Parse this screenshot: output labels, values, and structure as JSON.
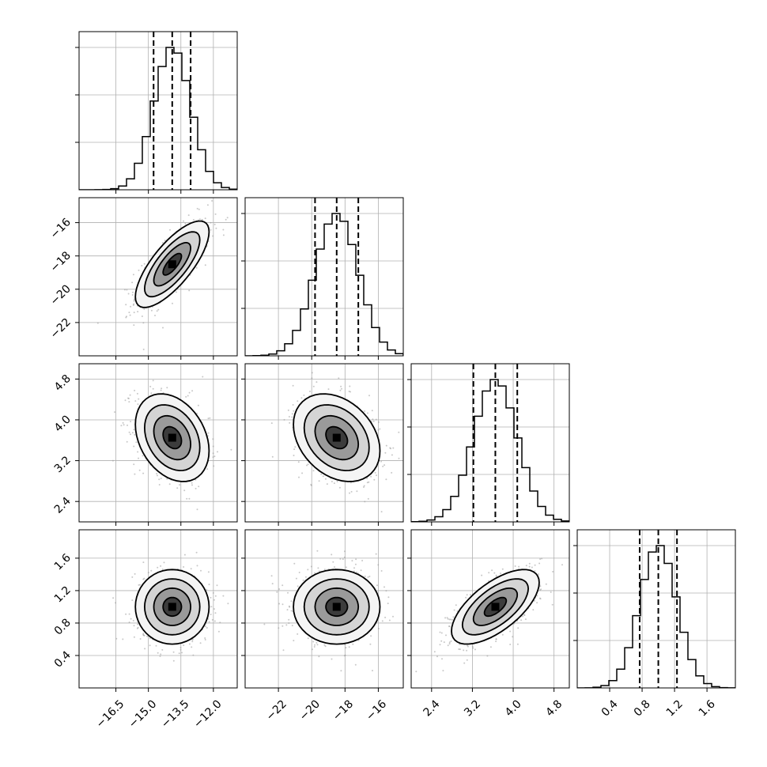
{
  "chart_data": {
    "type": "corner",
    "title": "",
    "parameters": [
      {
        "mean": -13.9,
        "sd": 0.85,
        "range": [
          -18.2,
          -10.9
        ],
        "q16": -14.76,
        "q50": -13.9,
        "q84": -13.05,
        "ticks": [
          -16.5,
          -15.0,
          -13.5,
          -12.0
        ],
        "tick_labels": [
          "−16.5",
          "−15.0",
          "−13.5",
          "−12.0"
        ]
      },
      {
        "mean": -18.5,
        "sd": 1.3,
        "range": [
          -24.0,
          -14.5
        ],
        "q16": -19.8,
        "q50": -18.5,
        "q84": -17.2,
        "ticks": [
          -22,
          -20,
          -18,
          -16
        ],
        "tick_labels": [
          "−22",
          "−20",
          "−18",
          "−16"
        ]
      },
      {
        "mean": 3.65,
        "sd": 0.43,
        "range": [
          2.0,
          5.1
        ],
        "q16": 3.22,
        "q50": 3.65,
        "q84": 4.08,
        "ticks": [
          2.4,
          3.2,
          4.0,
          4.8
        ],
        "tick_labels": [
          "2.4",
          "3.2",
          "4.0",
          "4.8"
        ]
      },
      {
        "mean": 1.0,
        "sd": 0.23,
        "range": [
          0.0,
          1.95
        ],
        "q16": 0.77,
        "q50": 1.0,
        "q84": 1.23,
        "ticks": [
          0.4,
          0.8,
          1.2,
          1.6
        ],
        "tick_labels": [
          "0.4",
          "0.8",
          "1.2",
          "1.6"
        ]
      }
    ],
    "correlations": [
      [
        1.0,
        0.75,
        -0.3,
        0.0
      ],
      [
        0.75,
        1.0,
        -0.3,
        0.0
      ],
      [
        -0.3,
        -0.3,
        1.0,
        0.65
      ],
      [
        0.0,
        0.0,
        0.65,
        1.0
      ]
    ],
    "histogram_bins": 20,
    "grid": true,
    "colors": {
      "scatter": "#9a9a9a",
      "line": "#000000"
    }
  }
}
